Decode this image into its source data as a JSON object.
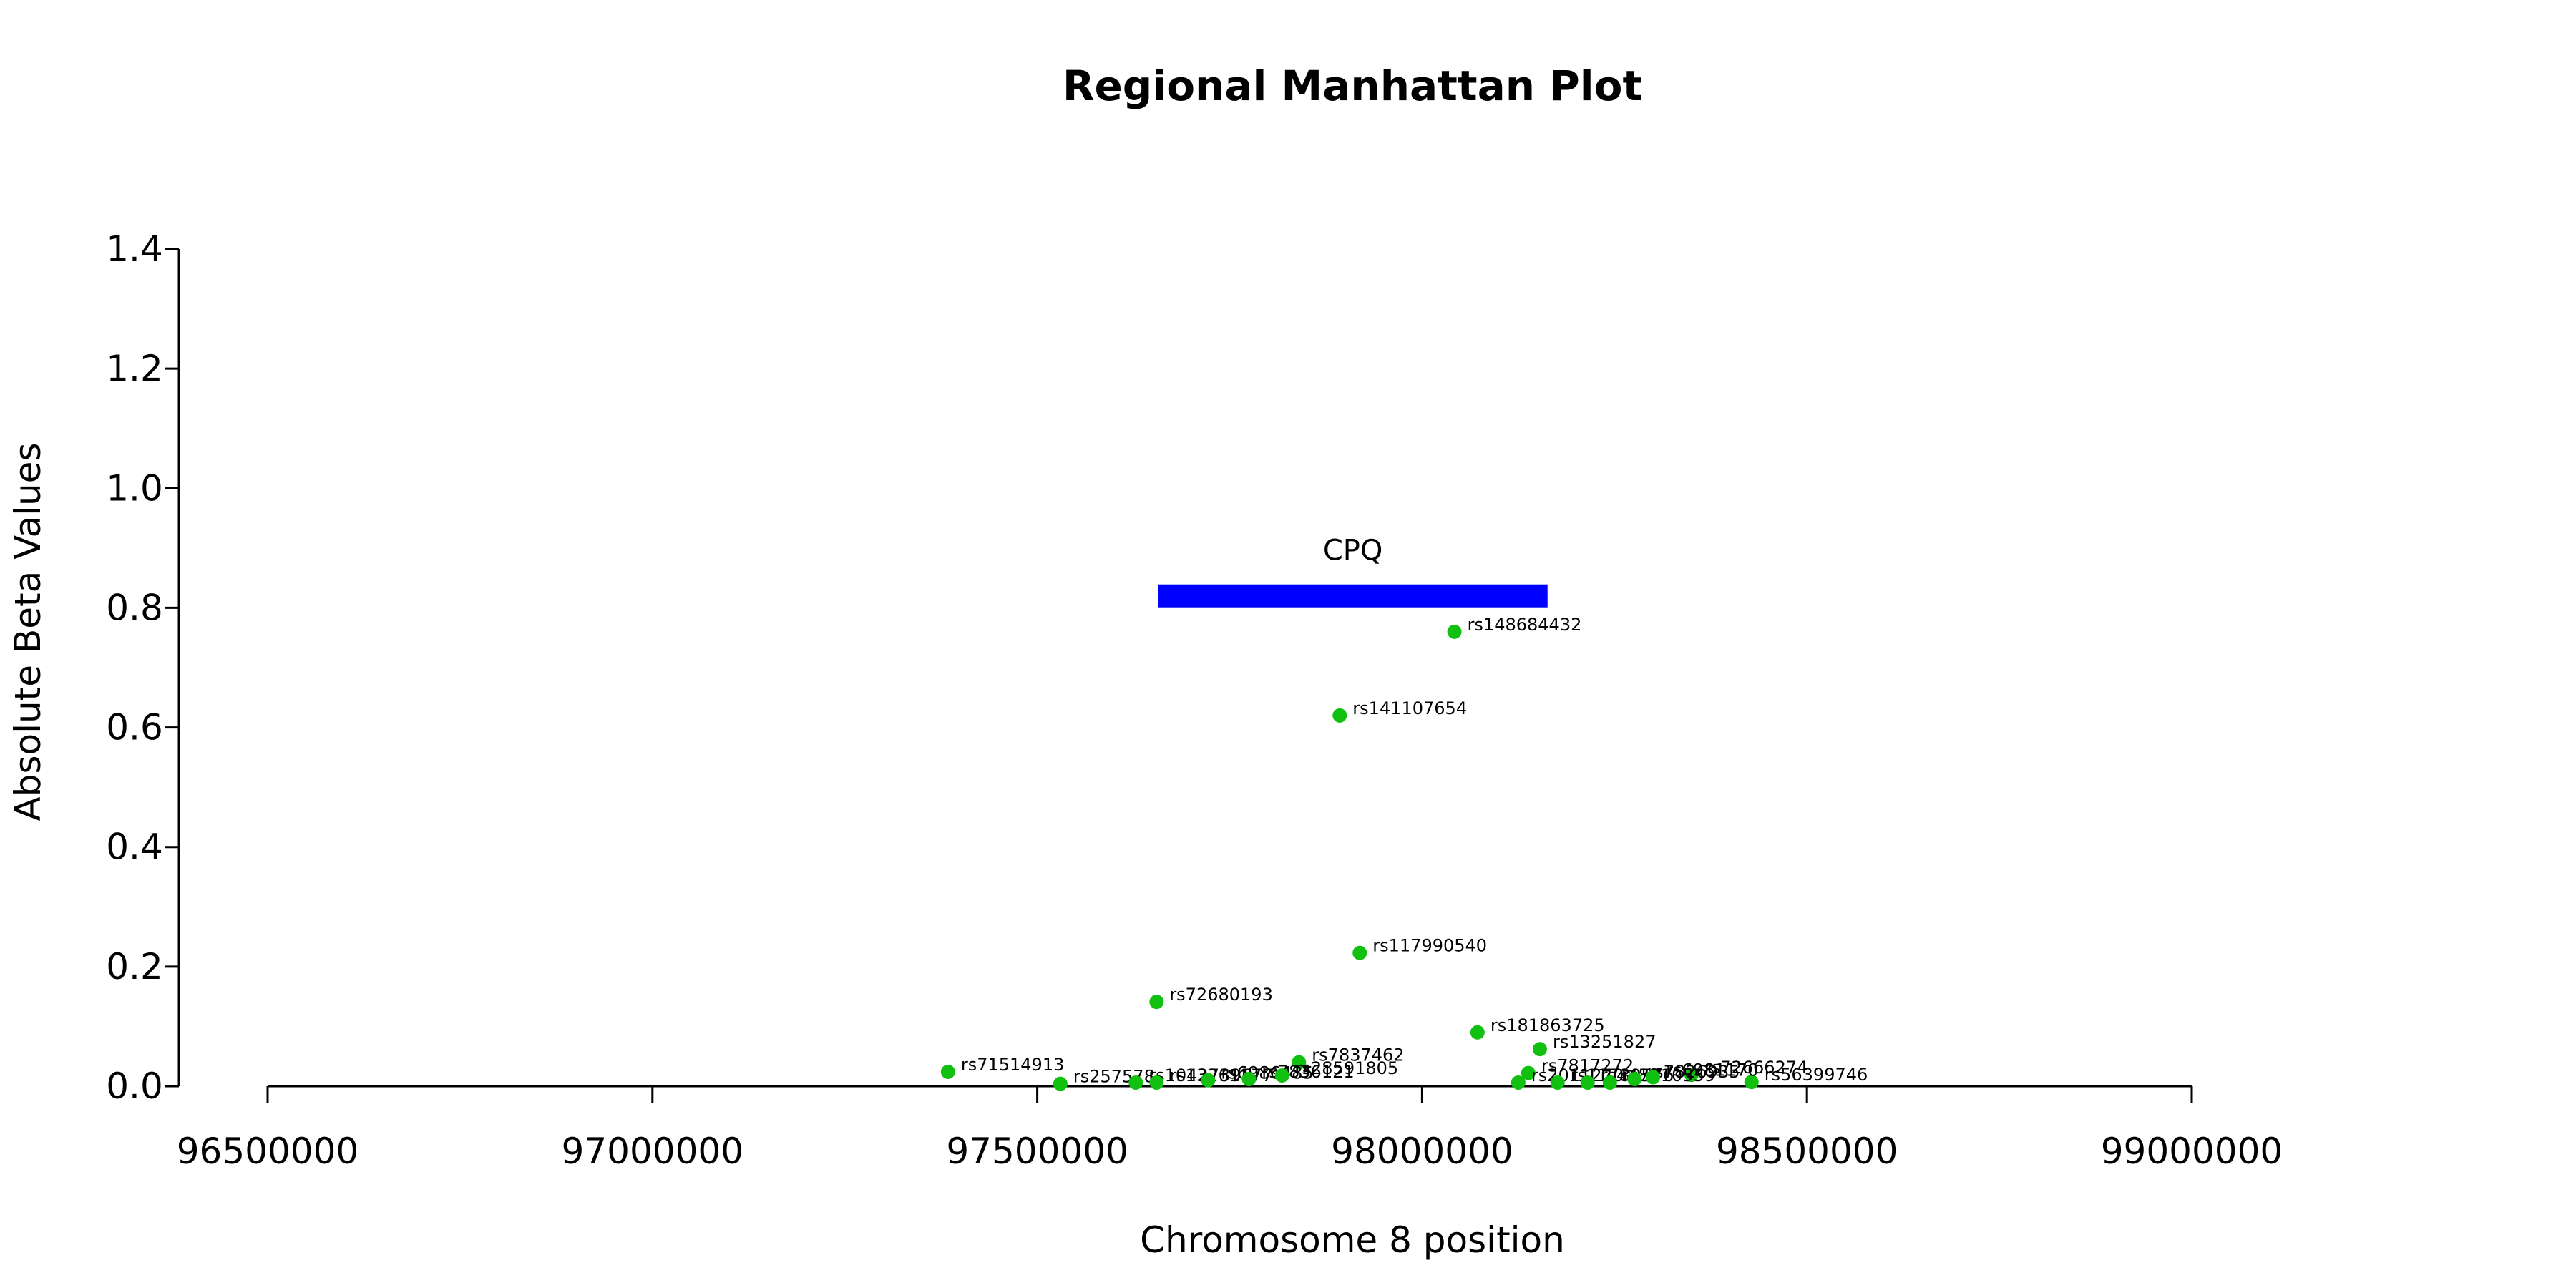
{
  "chart_data": {
    "type": "scatter",
    "title": "Regional Manhattan Plot",
    "xlabel": "Chromosome 8 position",
    "ylabel": "Absolute Beta Values",
    "xlim": [
      96500000,
      99000000
    ],
    "ylim": [
      0,
      1.4
    ],
    "xticks": [
      96500000,
      97000000,
      97500000,
      98000000,
      98500000,
      99000000
    ],
    "yticks": [
      0.0,
      0.2,
      0.4,
      0.6,
      0.8,
      1.0,
      1.2,
      1.4
    ],
    "grid": false,
    "point_color": "#11c011",
    "gene": {
      "name": "CPQ",
      "start": 97657000,
      "end": 98163000,
      "y": 0.82,
      "color": "#0000ff"
    },
    "points": [
      {
        "label": "rs148684432",
        "x": 98042000,
        "y": 0.76
      },
      {
        "label": "rs141107654",
        "x": 97893000,
        "y": 0.62
      },
      {
        "label": "rs117990540",
        "x": 97919000,
        "y": 0.223
      },
      {
        "label": "rs72680193",
        "x": 97655000,
        "y": 0.141
      },
      {
        "label": "rs181863725",
        "x": 98072000,
        "y": 0.09
      },
      {
        "label": "rs13251827",
        "x": 98153000,
        "y": 0.062
      },
      {
        "label": "rs7837462",
        "x": 97840000,
        "y": 0.04
      },
      {
        "label": "rs71514913",
        "x": 97384000,
        "y": 0.024
      },
      {
        "label": "rs7817272",
        "x": 98138000,
        "y": 0.022
      },
      {
        "label": "rs72666274",
        "x": 98350000,
        "y": 0.019
      },
      {
        "label": "rs56399746",
        "x": 98428000,
        "y": 0.007
      },
      {
        "label": "rs257578",
        "x": 97530000,
        "y": 0.004
      },
      {
        "label": "rs10427395",
        "x": 97628000,
        "y": 0.006
      },
      {
        "label": "rs13261177",
        "x": 97655000,
        "y": 0.006
      },
      {
        "label": "rs6986485",
        "x": 97722000,
        "y": 0.01
      },
      {
        "label": "rs7836121",
        "x": 97775000,
        "y": 0.012
      },
      {
        "label": "rs28591805",
        "x": 97818000,
        "y": 0.018
      },
      {
        "label": "rs2011270",
        "x": 98125000,
        "y": 0.006
      },
      {
        "label": "rs11780576",
        "x": 98176000,
        "y": 0.006
      },
      {
        "label": "rs4489",
        "x": 98215000,
        "y": 0.006
      },
      {
        "label": "rs7010559",
        "x": 98244000,
        "y": 0.006
      },
      {
        "label": "rs7826935",
        "x": 98276000,
        "y": 0.012
      },
      {
        "label": "rs6981170",
        "x": 98300000,
        "y": 0.015
      }
    ]
  }
}
